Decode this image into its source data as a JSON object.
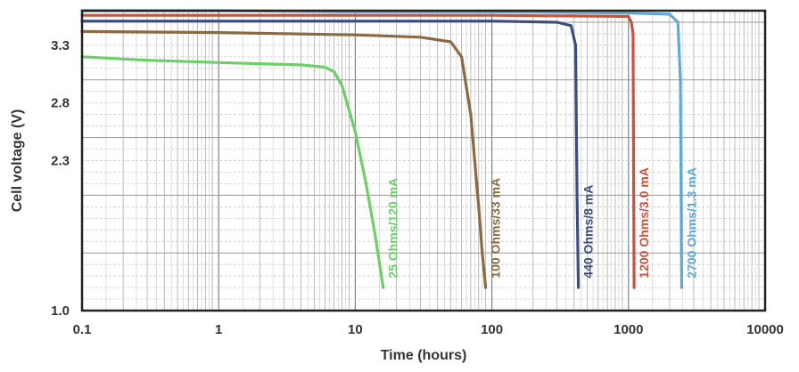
{
  "chart_data": {
    "type": "line",
    "xlabel": "Time (hours)",
    "ylabel": "Cell voltage (V)",
    "x_scale": "log",
    "xlim": [
      0.1,
      10000
    ],
    "ylim": [
      1.0,
      3.6
    ],
    "grid": true,
    "x_ticks": [
      0.1,
      1,
      10,
      100,
      1000,
      10000
    ],
    "x_tick_labels": [
      "0.1",
      "1",
      "10",
      "100",
      "1000",
      "10000"
    ],
    "y_ticks": [
      1.0,
      2.3,
      2.8,
      3.3
    ],
    "y_tick_labels": [
      "1.0",
      "2.3",
      "2.8",
      "3.3"
    ],
    "series": [
      {
        "name": "25 Ohms/120 mA",
        "color": "#6ccf67",
        "x": [
          0.1,
          0.3,
          1,
          2,
          4,
          6,
          7,
          8,
          10,
          12,
          14,
          16
        ],
        "y": [
          3.2,
          3.17,
          3.15,
          3.14,
          3.13,
          3.11,
          3.07,
          2.95,
          2.55,
          2.1,
          1.65,
          1.2
        ]
      },
      {
        "name": "100 Ohms/33 mA",
        "color": "#8b6a42",
        "x": [
          0.1,
          1,
          10,
          30,
          50,
          60,
          70,
          80,
          85,
          90
        ],
        "y": [
          3.42,
          3.41,
          3.39,
          3.37,
          3.33,
          3.2,
          2.7,
          1.9,
          1.5,
          1.2
        ]
      },
      {
        "name": "440 Ohms/8 mA",
        "color": "#3c4e80",
        "x": [
          0.1,
          1,
          10,
          100,
          300,
          380,
          410,
          420,
          430
        ],
        "y": [
          3.51,
          3.51,
          3.51,
          3.51,
          3.5,
          3.47,
          3.3,
          2.0,
          1.2
        ]
      },
      {
        "name": "1200 Ohms/3.0 mA",
        "color": "#c4533f",
        "x": [
          0.1,
          1,
          10,
          100,
          1000,
          1050,
          1080,
          1100
        ],
        "y": [
          3.56,
          3.56,
          3.56,
          3.56,
          3.55,
          3.5,
          3.4,
          1.2
        ]
      },
      {
        "name": "2700 Ohms/1.3 mA",
        "color": "#5fa9d6",
        "x": [
          0.1,
          1,
          10,
          100,
          1000,
          2000,
          2300,
          2400,
          2450
        ],
        "y": [
          3.6,
          3.6,
          3.59,
          3.59,
          3.58,
          3.57,
          3.5,
          3.0,
          1.2
        ]
      }
    ]
  }
}
